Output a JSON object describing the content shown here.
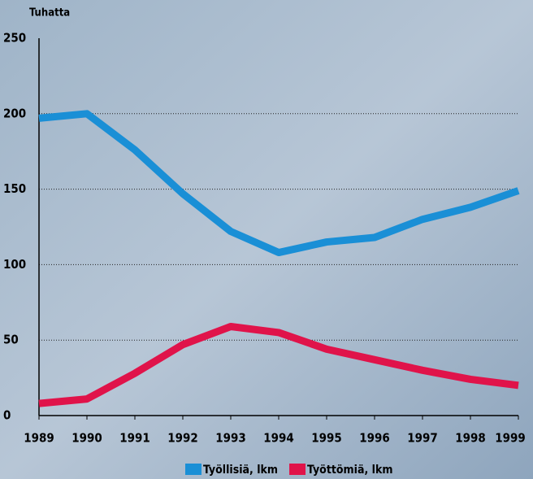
{
  "chart_data": {
    "type": "line",
    "y_axis_label": "Tuhatta",
    "x": [
      1989,
      1990,
      1991,
      1992,
      1993,
      1994,
      1995,
      1996,
      1997,
      1998,
      1999
    ],
    "series": [
      {
        "name": "Työllisiä, lkm",
        "color": "#1a8fd6",
        "values": [
          197,
          200,
          176,
          147,
          122,
          108,
          115,
          118,
          130,
          138,
          149
        ]
      },
      {
        "name": "Työttömiä, lkm",
        "color": "#e0134a",
        "values": [
          8,
          11,
          28,
          47,
          59,
          55,
          44,
          37,
          30,
          24,
          20
        ]
      }
    ],
    "xlim": [
      1989,
      1999
    ],
    "xticks": [
      1989,
      1990,
      1991,
      1992,
      1993,
      1994,
      1995,
      1996,
      1997,
      1998,
      1999
    ],
    "ylim": [
      0,
      250
    ],
    "yticks": [
      0,
      50,
      100,
      150,
      200,
      250
    ],
    "grid": true,
    "legend": "bottom"
  }
}
